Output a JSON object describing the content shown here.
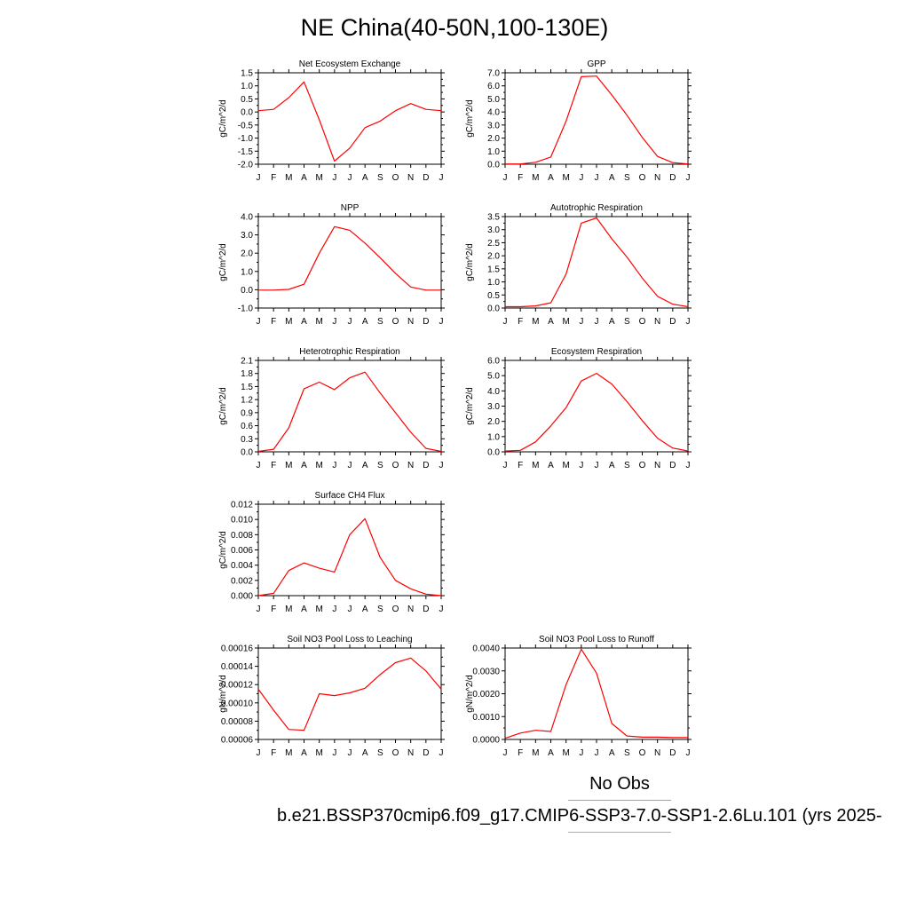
{
  "page": {
    "title": "NE China(40-50N,100-130E)",
    "legend": {
      "obs_label": "No Obs",
      "obs_color": "#8f9cf0",
      "run_label": "b.e21.BSSP370cmip6.f09_g17.CMIP6-SSP3-7.0-SSP1-2.6Lu.101 (yrs 2025-",
      "run_color": "#f08f8f"
    }
  },
  "chart_data": [
    {
      "type": "line",
      "title": "Net Ecosystem Exchange",
      "ylabel": "gC/m^2/d",
      "categories": [
        "J",
        "F",
        "M",
        "A",
        "M",
        "J",
        "J",
        "A",
        "S",
        "O",
        "N",
        "D",
        "J"
      ],
      "ylim": [
        -2.0,
        1.5
      ],
      "yticks": [
        "1.5",
        "1.0",
        "0.5",
        "0.0",
        "-0.5",
        "-1.0",
        "-1.5",
        "-2.0"
      ],
      "series": [
        {
          "color": "#ff0000",
          "values": [
            0.05,
            0.1,
            0.55,
            1.15,
            -0.3,
            -1.88,
            -1.38,
            -0.6,
            -0.35,
            0.05,
            0.32,
            0.1,
            0.05
          ]
        }
      ]
    },
    {
      "type": "line",
      "title": "GPP",
      "ylabel": "gC/m^2/d",
      "categories": [
        "J",
        "F",
        "M",
        "A",
        "M",
        "J",
        "J",
        "A",
        "S",
        "O",
        "N",
        "D",
        "J"
      ],
      "ylim": [
        0.0,
        7.0
      ],
      "yticks": [
        "7.0",
        "6.0",
        "5.0",
        "4.0",
        "3.0",
        "2.0",
        "1.0",
        "0.0"
      ],
      "series": [
        {
          "color": "#ff0000",
          "values": [
            0.02,
            0.02,
            0.15,
            0.55,
            3.3,
            6.7,
            6.75,
            5.3,
            3.75,
            2.05,
            0.6,
            0.12,
            0.02
          ]
        }
      ]
    },
    {
      "type": "line",
      "title": "NPP",
      "ylabel": "gC/m^2/d",
      "categories": [
        "J",
        "F",
        "M",
        "A",
        "M",
        "J",
        "J",
        "A",
        "S",
        "O",
        "N",
        "D",
        "J"
      ],
      "ylim": [
        -1.0,
        4.0
      ],
      "yticks": [
        "4.0",
        "3.0",
        "2.0",
        "1.0",
        "0.0",
        "-1.0"
      ],
      "series": [
        {
          "color": "#ff0000",
          "values": [
            -0.02,
            -0.02,
            0.02,
            0.3,
            2.0,
            3.45,
            3.25,
            2.55,
            1.75,
            0.9,
            0.15,
            -0.02,
            -0.02
          ]
        }
      ]
    },
    {
      "type": "line",
      "title": "Autotrophic Respiration",
      "ylabel": "gC/m^2/d",
      "categories": [
        "J",
        "F",
        "M",
        "A",
        "M",
        "J",
        "J",
        "A",
        "S",
        "O",
        "N",
        "D",
        "J"
      ],
      "ylim": [
        0.0,
        3.5
      ],
      "yticks": [
        "3.5",
        "3.0",
        "2.5",
        "2.0",
        "1.5",
        "1.0",
        "0.5",
        "0.0"
      ],
      "series": [
        {
          "color": "#ff0000",
          "values": [
            0.05,
            0.05,
            0.08,
            0.2,
            1.3,
            3.25,
            3.45,
            2.65,
            1.95,
            1.15,
            0.45,
            0.15,
            0.05
          ]
        }
      ]
    },
    {
      "type": "line",
      "title": "Heterotrophic Respiration",
      "ylabel": "gC/m^2/d",
      "categories": [
        "J",
        "F",
        "M",
        "A",
        "M",
        "J",
        "J",
        "A",
        "S",
        "O",
        "N",
        "D",
        "J"
      ],
      "ylim": [
        0.0,
        2.1
      ],
      "yticks": [
        "2.1",
        "1.8",
        "1.5",
        "1.2",
        "0.9",
        "0.6",
        "0.3",
        "0.0"
      ],
      "series": [
        {
          "color": "#ff0000",
          "values": [
            0.01,
            0.06,
            0.55,
            1.45,
            1.6,
            1.43,
            1.7,
            1.83,
            1.35,
            0.9,
            0.45,
            0.08,
            0.01
          ]
        }
      ]
    },
    {
      "type": "line",
      "title": "Ecosystem Respiration",
      "ylabel": "gC/m^2/d",
      "categories": [
        "J",
        "F",
        "M",
        "A",
        "M",
        "J",
        "J",
        "A",
        "S",
        "O",
        "N",
        "D",
        "J"
      ],
      "ylim": [
        0.0,
        6.0
      ],
      "yticks": [
        "6.0",
        "5.0",
        "4.0",
        "3.0",
        "2.0",
        "1.0",
        "0.0"
      ],
      "series": [
        {
          "color": "#ff0000",
          "values": [
            0.05,
            0.1,
            0.65,
            1.7,
            2.9,
            4.65,
            5.15,
            4.45,
            3.3,
            2.05,
            0.9,
            0.25,
            0.05
          ]
        }
      ]
    },
    {
      "type": "line",
      "title": "Surface CH4 Flux",
      "ylabel": "gC/m^2/d",
      "categories": [
        "J",
        "F",
        "M",
        "A",
        "M",
        "J",
        "J",
        "A",
        "S",
        "O",
        "N",
        "D",
        "J"
      ],
      "ylim": [
        0.0,
        0.012
      ],
      "yticks": [
        "0.012",
        "0.010",
        "0.008",
        "0.006",
        "0.004",
        "0.002",
        "0.000"
      ],
      "series": [
        {
          "color": "#ff0000",
          "values": [
            0.0,
            0.0003,
            0.0033,
            0.0043,
            0.0036,
            0.0031,
            0.008,
            0.0101,
            0.005,
            0.002,
            0.0009,
            0.0002,
            0.0
          ]
        }
      ]
    },
    {
      "type": "line",
      "title": "Soil NO3 Pool Loss to Leaching",
      "ylabel": "gN/m^2/d",
      "categories": [
        "J",
        "F",
        "M",
        "A",
        "M",
        "J",
        "J",
        "A",
        "S",
        "O",
        "N",
        "D",
        "J"
      ],
      "ylim": [
        6e-05,
        0.00016
      ],
      "yticks": [
        "0.00016",
        "0.00014",
        "0.00012",
        "0.00010",
        "0.00008",
        "0.00006"
      ],
      "series": [
        {
          "color": "#ff0000",
          "values": [
            0.000115,
            9.2e-05,
            7.1e-05,
            7e-05,
            0.00011,
            0.000108,
            0.000111,
            0.000116,
            0.000131,
            0.000144,
            0.000149,
            0.000135,
            0.000115
          ]
        }
      ]
    },
    {
      "type": "line",
      "title": "Soil NO3 Pool Loss to Runoff",
      "ylabel": "gN/m^2/d",
      "categories": [
        "J",
        "F",
        "M",
        "A",
        "M",
        "J",
        "J",
        "A",
        "S",
        "O",
        "N",
        "D",
        "J"
      ],
      "ylim": [
        0.0,
        0.004
      ],
      "yticks": [
        "0.0040",
        "0.0030",
        "0.0020",
        "0.0010",
        "0.0000"
      ],
      "series": [
        {
          "color": "#ff0000",
          "values": [
            5e-05,
            0.00028,
            0.0004,
            0.00035,
            0.0024,
            0.00395,
            0.0029,
            0.0007,
            0.00015,
            0.0001,
            0.0001,
            8e-05,
            8e-05
          ]
        }
      ]
    }
  ]
}
